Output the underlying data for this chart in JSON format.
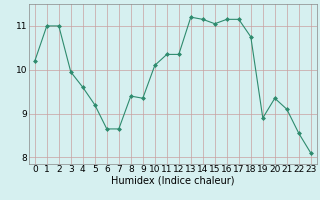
{
  "x": [
    0,
    1,
    2,
    3,
    4,
    5,
    6,
    7,
    8,
    9,
    10,
    11,
    12,
    13,
    14,
    15,
    16,
    17,
    18,
    19,
    20,
    21,
    22,
    23
  ],
  "y": [
    10.2,
    11.0,
    11.0,
    9.95,
    9.6,
    9.2,
    8.65,
    8.65,
    9.4,
    9.35,
    10.1,
    10.35,
    10.35,
    11.2,
    11.15,
    11.05,
    11.15,
    11.15,
    10.75,
    8.9,
    9.35,
    9.1,
    8.55,
    8.1
  ],
  "line_color": "#2e8b6e",
  "marker": "D",
  "marker_size": 2,
  "bg_color": "#d6f0f0",
  "grid_color": "#c8a0a0",
  "xlabel": "Humidex (Indice chaleur)",
  "xlim": [
    -0.5,
    23.5
  ],
  "ylim": [
    7.85,
    11.5
  ],
  "yticks": [
    8,
    9,
    10,
    11
  ],
  "xticks": [
    0,
    1,
    2,
    3,
    4,
    5,
    6,
    7,
    8,
    9,
    10,
    11,
    12,
    13,
    14,
    15,
    16,
    17,
    18,
    19,
    20,
    21,
    22,
    23
  ],
  "xlabel_fontsize": 7,
  "tick_fontsize": 6.5
}
